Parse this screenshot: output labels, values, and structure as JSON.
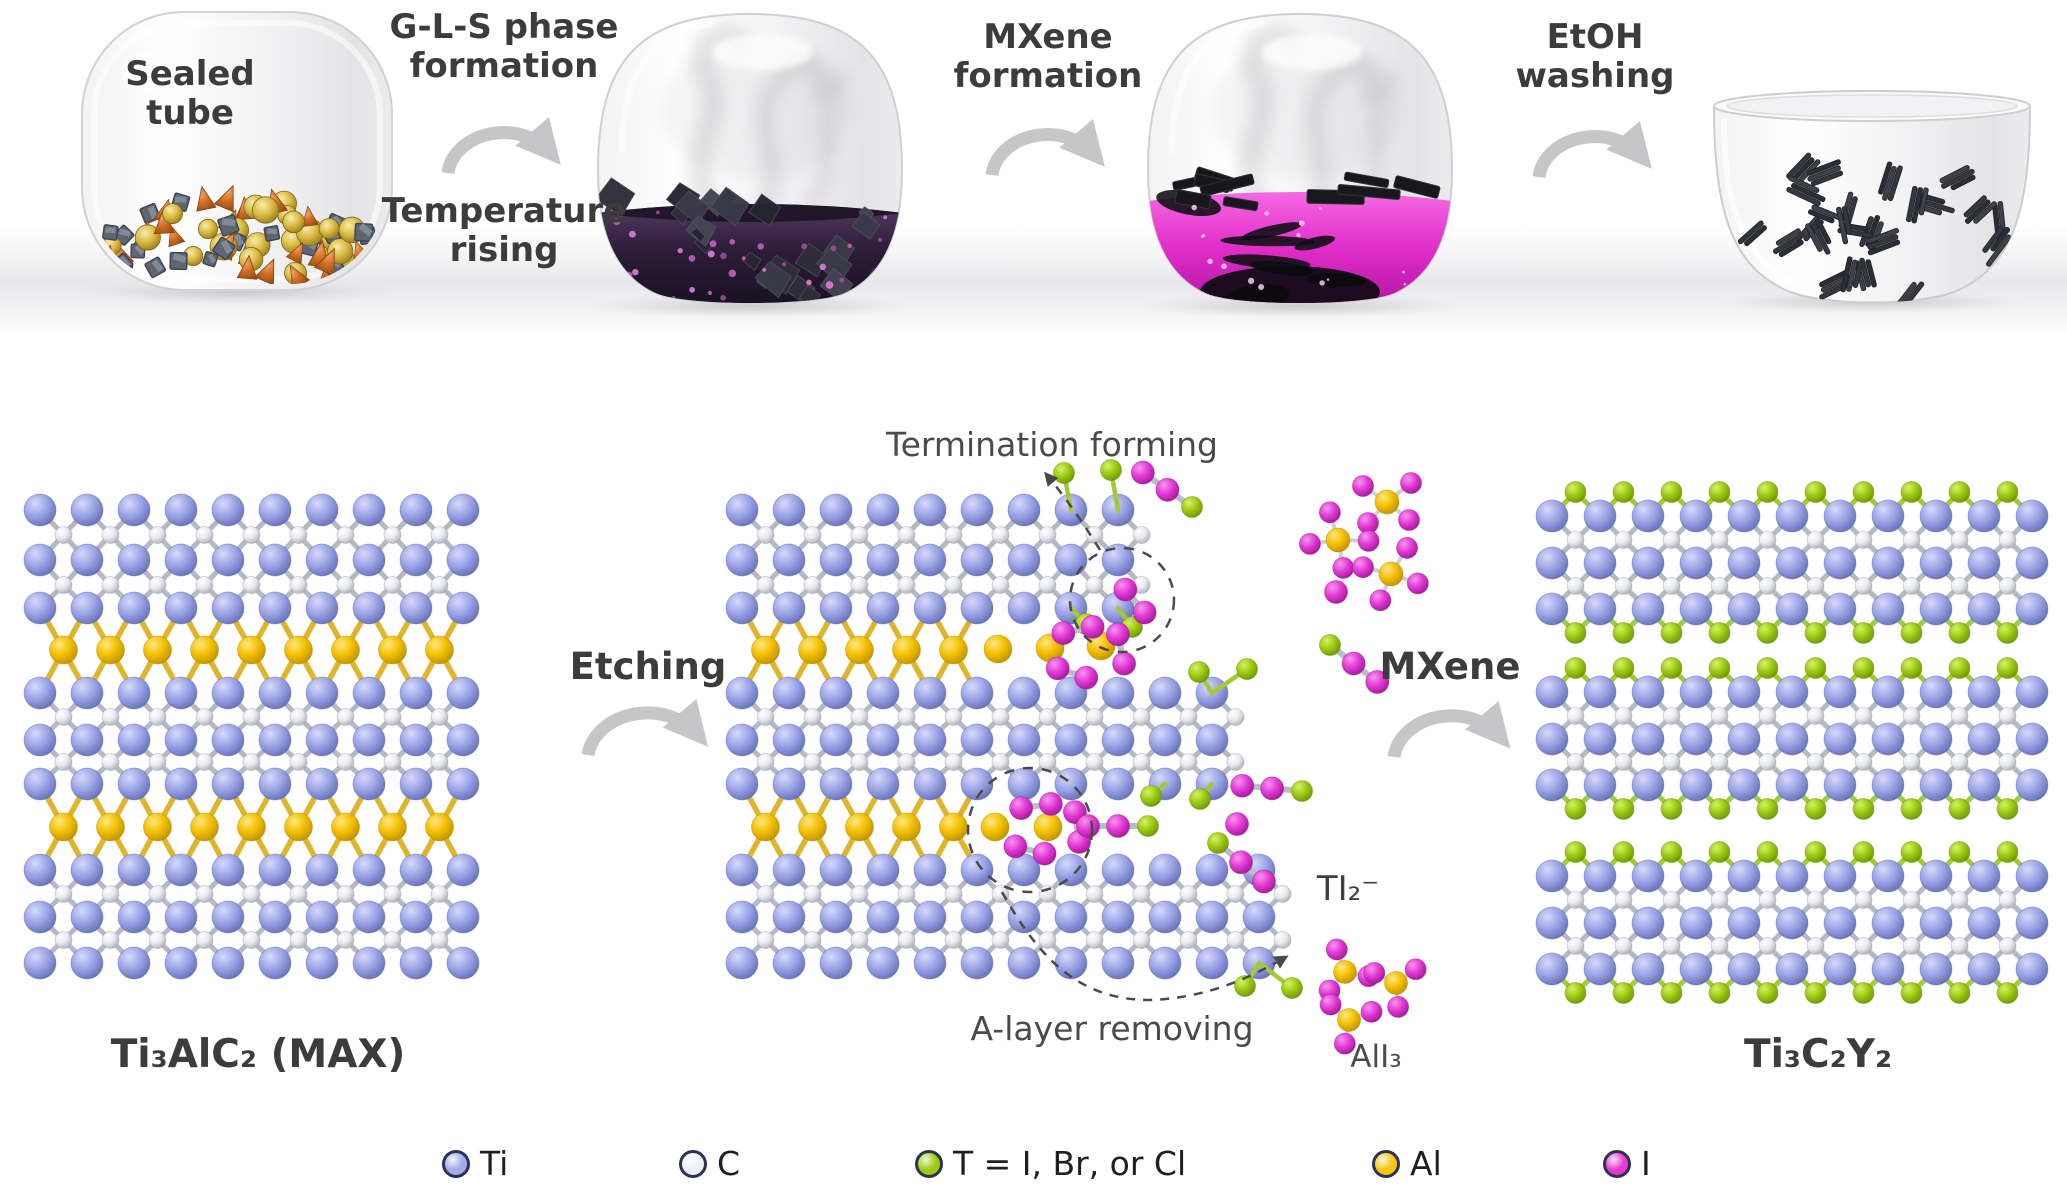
{
  "figure": {
    "process": {
      "vessel1_label": "Sealed tube",
      "steps": [
        {
          "label": "G-L-S phase formation",
          "sublabel": "Temperature rising"
        },
        {
          "label": "MXene formation",
          "sublabel": ""
        },
        {
          "label": "EtOH washing",
          "sublabel": ""
        }
      ]
    },
    "reaction": {
      "reactant_label": "Ti₃AlC₂ (MAX)",
      "step1_label": "Etching",
      "step2_label": "MXene",
      "product_label": "Ti₃C₂Y₂",
      "annotations": {
        "termination": "Termination forming",
        "a_layer": "A-layer removing",
        "ti2": "TI₂⁻",
        "ali3": "AlI₃"
      }
    },
    "legend": [
      {
        "symbol": "Ti",
        "label": "Ti",
        "color": "#a3abec"
      },
      {
        "symbol": "C",
        "label": "C",
        "color": "#eef0f4"
      },
      {
        "symbol": "T",
        "label": "T = I, Br, or Cl",
        "color": "#9ccb12"
      },
      {
        "symbol": "Al",
        "label": "Al",
        "color": "#f6c513"
      },
      {
        "symbol": "I",
        "label": "I",
        "color": "#e838d2"
      }
    ],
    "structures": {
      "max_rows": [
        "Ti",
        "C",
        "Ti",
        "C",
        "Ti",
        "Al",
        "Ti",
        "C",
        "Ti",
        "C",
        "Ti",
        "Al",
        "Ti",
        "C",
        "Ti",
        "C",
        "Ti"
      ],
      "mxene_slab_rows": [
        "T",
        "Ti",
        "C",
        "Ti",
        "C",
        "Ti",
        "T"
      ]
    },
    "colors": {
      "atoms": {
        "Ti": {
          "fill": "#9ba5e6",
          "hi": "#d6dafb",
          "edge": "#5e69b2",
          "r": 16
        },
        "C": {
          "fill": "#e9eaef",
          "hi": "#ffffff",
          "edge": "#a7a7b2",
          "r": 8.5
        },
        "Al": {
          "fill": "#f4c000",
          "hi": "#ffe782",
          "edge": "#b68c00",
          "r": 14
        },
        "T": {
          "fill": "#9ccb12",
          "hi": "#d8f168",
          "edge": "#688f06",
          "r": 10.5
        },
        "I": {
          "fill": "#e33ad5",
          "hi": "#f795ef",
          "edge": "#9a1590",
          "r": 11.5
        }
      },
      "text": "#3c3c3c",
      "arrow": "#c6c6c8",
      "annotation": "#4a4a4a",
      "liquid_dark": "#2d1f38",
      "liquid_magenta": "#e33fd0"
    }
  }
}
